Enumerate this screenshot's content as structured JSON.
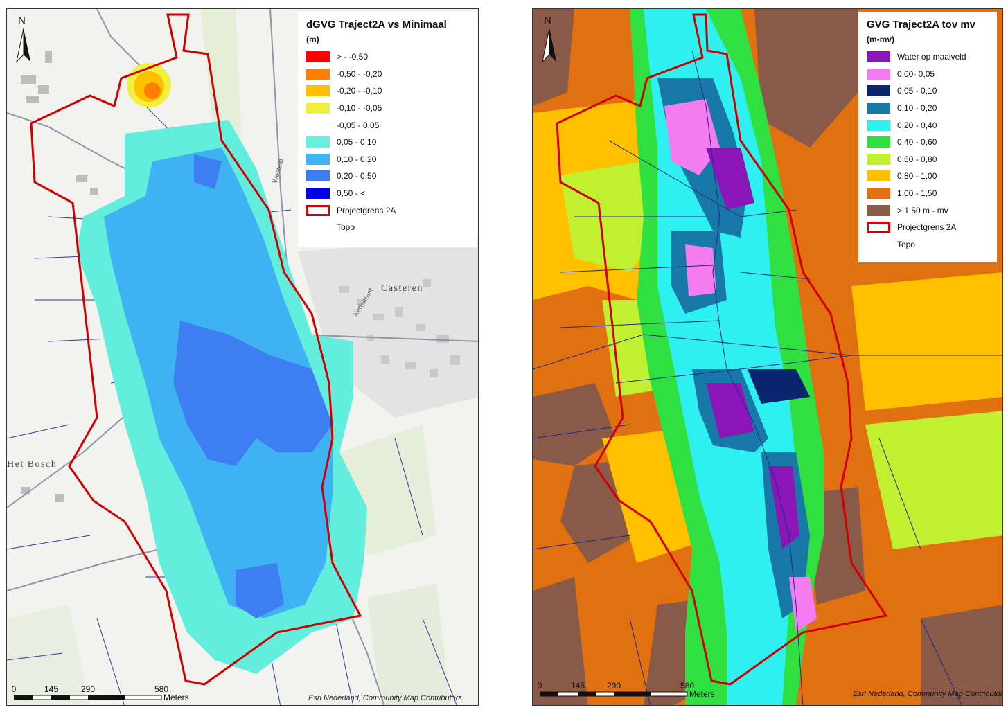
{
  "left_map": {
    "legend": {
      "title": "dGVG Traject2A vs Minimaal",
      "unit": "(m)",
      "items": [
        {
          "label": "> - -0,50",
          "color": "#ff0000"
        },
        {
          "label": "-0,50 - -0,20",
          "color": "#ff8000"
        },
        {
          "label": "-0,20 - -0,10",
          "color": "#ffc000"
        },
        {
          "label": "-0,10 - -0,05",
          "color": "#f0f040"
        },
        {
          "label": "-0,05 - 0,05",
          "color": ""
        },
        {
          "label": "0,05 - 0,10",
          "color": "#66f0e0"
        },
        {
          "label": "0,10 - 0,20",
          "color": "#40b4f4"
        },
        {
          "label": "0,20 - 0,50",
          "color": "#3e7cf0"
        },
        {
          "label": "0,50 - <",
          "color": "#0000e8"
        },
        {
          "label": "Projectgrens 2A",
          "color": "outline"
        },
        {
          "label": "Topo",
          "color": ""
        }
      ]
    },
    "north_label": "N",
    "places": {
      "casteren": "Casteren",
      "het_bosch": "Het Bosch"
    },
    "streets": {
      "kerkstraat": "Kerkstraat",
      "westelb": "Westelb"
    },
    "scale": {
      "ticks": [
        "0",
        "145",
        "290",
        "580"
      ],
      "unit": "Meters"
    },
    "credit": "Esri Nederland, Community Map Contributors"
  },
  "right_map": {
    "legend": {
      "title": "GVG Traject2A tov mv",
      "unit": "(m-mv)",
      "items": [
        {
          "label": "Water op maaiveld",
          "color": "#8a16b8"
        },
        {
          "label": "0,00- 0,05",
          "color": "#f47cf0"
        },
        {
          "label": "0,05 - 0,10",
          "color": "#0a2470"
        },
        {
          "label": "0,10 - 0,20",
          "color": "#1878a8"
        },
        {
          "label": "0,20 - 0,40",
          "color": "#2ef0f0"
        },
        {
          "label": "0,40 - 0,60",
          "color": "#30e040"
        },
        {
          "label": "0,60 - 0,80",
          "color": "#c0f030"
        },
        {
          "label": "0,80 - 1,00",
          "color": "#ffc000"
        },
        {
          "label": "1,00 - 1,50",
          "color": "#e07010"
        },
        {
          "label": "> 1,50 m - mv",
          "color": "#8a5a48"
        },
        {
          "label": "Projectgrens 2A",
          "color": "outline"
        },
        {
          "label": "Topo",
          "color": ""
        }
      ]
    },
    "north_label": "N",
    "scale": {
      "ticks": [
        "0",
        "145",
        "290",
        "580"
      ],
      "unit": "Meters"
    },
    "credit": "Esri Nederland, Community Map Contributors"
  }
}
